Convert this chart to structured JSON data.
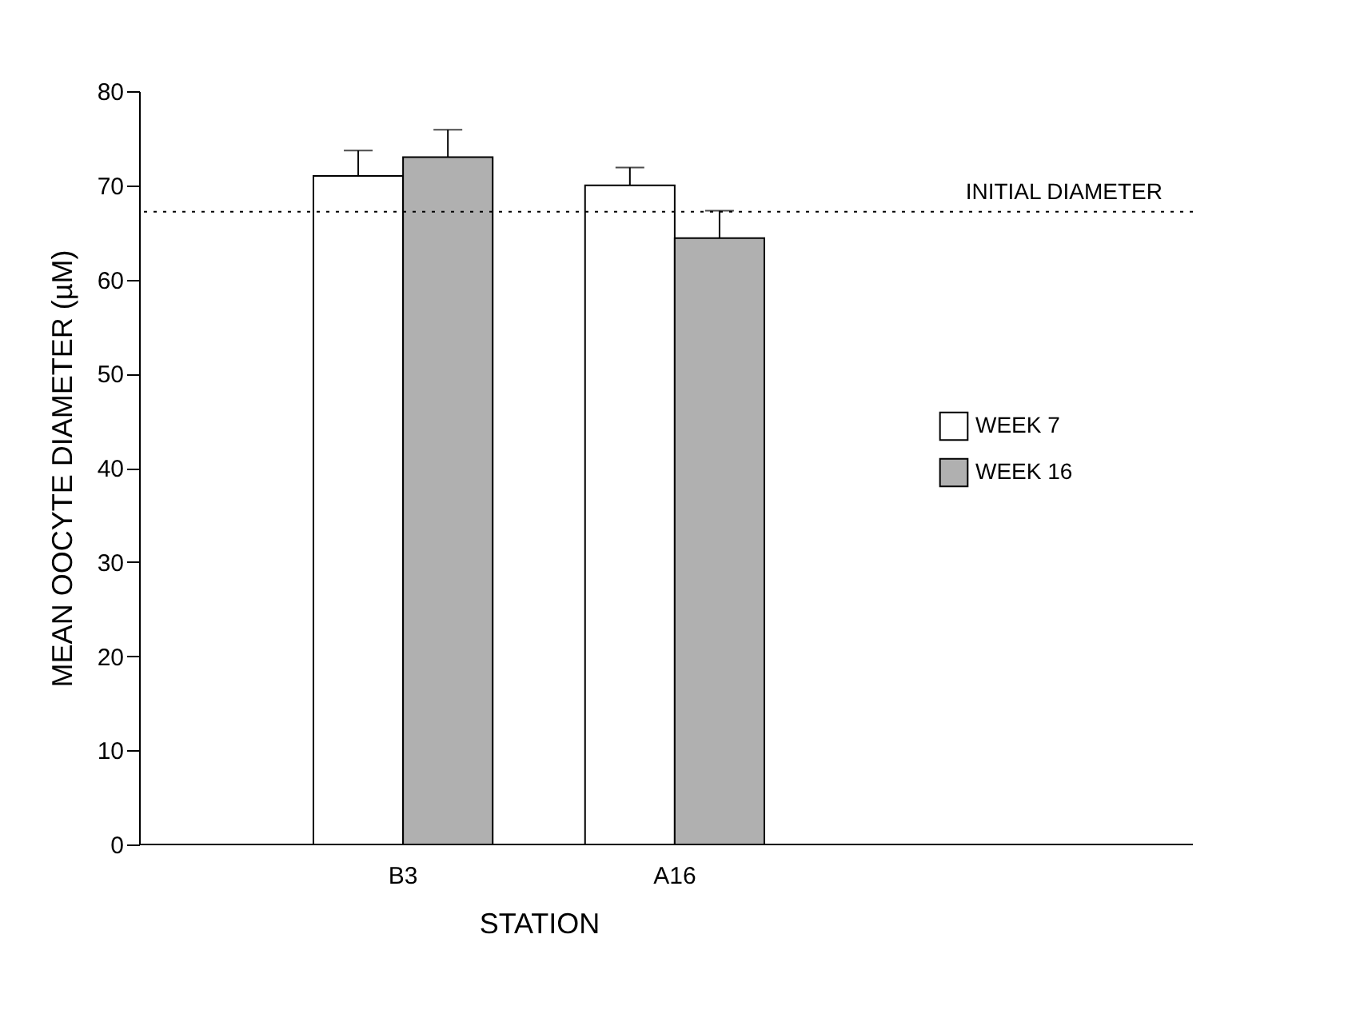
{
  "chart_data": {
    "type": "bar",
    "xlabel": "STATION",
    "ylabel": "MEAN OOCYTE DIAMETER (µM)",
    "categories": [
      "B3",
      "A16"
    ],
    "series": [
      {
        "name": "WEEK 7",
        "color": "#ffffff",
        "values": [
          71,
          70
        ],
        "errors": [
          [
            71,
            73.7
          ],
          [
            70,
            71.9
          ]
        ]
      },
      {
        "name": "WEEK 16",
        "color": "#b0b0b0",
        "values": [
          73,
          64.4
        ],
        "errors": [
          [
            73,
            75.9
          ],
          [
            64.4,
            67.3
          ]
        ]
      }
    ],
    "ylim": [
      0,
      80
    ],
    "yticks": [
      0,
      10,
      20,
      30,
      40,
      50,
      60,
      70,
      80
    ],
    "grid": false,
    "legend": "right",
    "ref_lines": [
      {
        "axis": "y",
        "value": 67.2,
        "label": "INITIAL DIAMETER",
        "line_style": "dotted",
        "color": "#000000"
      }
    ]
  }
}
